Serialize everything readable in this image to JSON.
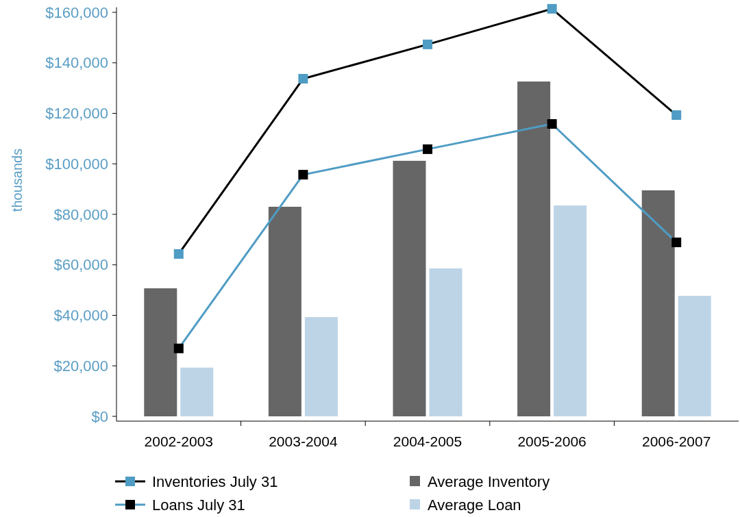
{
  "chart_data": {
    "type": "bar",
    "ylabel": "thousands",
    "categories": [
      "2002-2003",
      "2003-2004",
      "2004-2005",
      "2005-2006",
      "2006-2007"
    ],
    "ylim": [
      0,
      162000
    ],
    "yticks": [
      {
        "value": 0,
        "label": "$0"
      },
      {
        "value": 20000,
        "label": "$20,000"
      },
      {
        "value": 40000,
        "label": "$40,000"
      },
      {
        "value": 60000,
        "label": "$60,000"
      },
      {
        "value": 80000,
        "label": "$80,000"
      },
      {
        "value": 100000,
        "label": "$100,000"
      },
      {
        "value": 120000,
        "label": "$120,000"
      },
      {
        "value": 140000,
        "label": "$140,000"
      },
      {
        "value": 160000,
        "label": "$160,000"
      }
    ],
    "grid": false,
    "legend": "bottom",
    "series": [
      {
        "name": "Inventories July 31",
        "type": "line",
        "color": "#000000",
        "colors": [
          "#4f9cc4",
          "#4f9cc4",
          "#4f9cc4",
          "#4f9cc4",
          "#4f9cc4"
        ],
        "marker": "square",
        "values": [
          64300,
          133700,
          147300,
          161400,
          119300
        ]
      },
      {
        "name": "Loans July 31",
        "type": "line",
        "color": "#4f9cc4",
        "colors": [
          "#000000",
          "#000000",
          "#000000",
          "#000000",
          "#000000"
        ],
        "marker": "square",
        "values": [
          26900,
          95700,
          105800,
          115800,
          68900
        ]
      },
      {
        "name": "Average Inventory",
        "color": "#666666",
        "values": [
          50700,
          83000,
          101200,
          132600,
          89500
        ]
      },
      {
        "name": "Average Loan",
        "color": "#bdd4e7",
        "values": [
          19300,
          39300,
          58600,
          83500,
          47700
        ]
      }
    ]
  }
}
